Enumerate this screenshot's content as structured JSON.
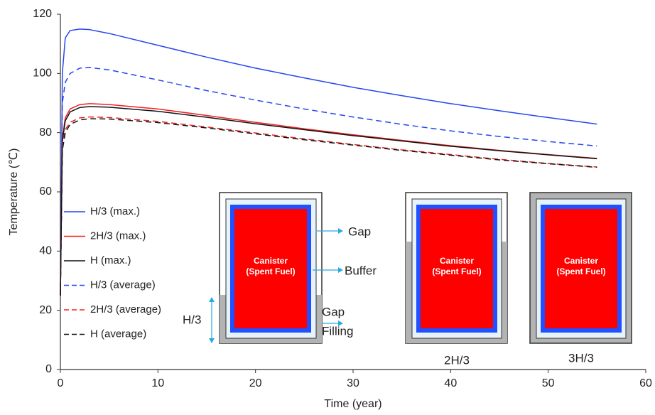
{
  "chart_data": {
    "type": "line",
    "xlabel": "Time (year)",
    "ylabel": "Temperature (℃)",
    "x": [
      0,
      0.2,
      0.5,
      1,
      2,
      3,
      5,
      10,
      15,
      20,
      25,
      30,
      35,
      40,
      45,
      50,
      55
    ],
    "series": [
      {
        "name": "H/3 (max.)",
        "color": "#2646f0",
        "dash": false,
        "values": [
          25,
          100,
          112,
          114.5,
          115,
          114.8,
          113.5,
          109.5,
          105.5,
          101.8,
          98.5,
          95.3,
          92.5,
          89.8,
          87.4,
          85.1,
          82.9
        ]
      },
      {
        "name": "2H/3 (max.)",
        "color": "#f02020",
        "dash": false,
        "values": [
          25,
          78,
          85,
          88,
          89.5,
          89.8,
          89.5,
          88,
          85.8,
          83.5,
          81.3,
          79.3,
          77.4,
          75.6,
          74,
          72.6,
          71.3
        ]
      },
      {
        "name": "H (max.)",
        "color": "#111111",
        "dash": false,
        "values": [
          25,
          77,
          84,
          87,
          88.5,
          88.8,
          88.6,
          87.2,
          85.2,
          83,
          81,
          79,
          77.2,
          75.4,
          73.9,
          72.5,
          71.2
        ]
      },
      {
        "name": "H/3 (average)",
        "color": "#2646f0",
        "dash": true,
        "values": [
          25,
          90,
          97,
          100,
          101.8,
          102,
          101.2,
          97.8,
          94.2,
          91,
          88,
          85.3,
          82.8,
          80.6,
          78.7,
          77,
          75.5
        ]
      },
      {
        "name": "2H/3 (average)",
        "color": "#f02020",
        "dash": true,
        "values": [
          25,
          75,
          81,
          83.5,
          85,
          85.3,
          85.1,
          83.8,
          81.9,
          79.9,
          77.9,
          76,
          74.2,
          72.6,
          71,
          69.6,
          68.4
        ]
      },
      {
        "name": "H (average)",
        "color": "#111111",
        "dash": true,
        "values": [
          25,
          74,
          80,
          82.8,
          84.3,
          84.7,
          84.6,
          83.4,
          81.6,
          79.6,
          77.6,
          75.8,
          74,
          72.4,
          70.8,
          69.5,
          68.3
        ]
      }
    ],
    "xlim": [
      0,
      60
    ],
    "xticks": [
      0,
      10,
      20,
      30,
      40,
      50,
      60
    ],
    "ylim": [
      0,
      120
    ],
    "yticks": [
      0,
      20,
      40,
      60,
      80,
      100,
      120
    ],
    "grid": false,
    "legend": "left",
    "annotations": {
      "canister": [
        "Canister",
        "(Spent Fuel)"
      ],
      "gap": "Gap",
      "buffer": "Buffer",
      "gap_filling": [
        "Gap",
        "Filling"
      ],
      "height": "H/3",
      "case_2": "2H/3",
      "case_3": "3H/3"
    }
  }
}
